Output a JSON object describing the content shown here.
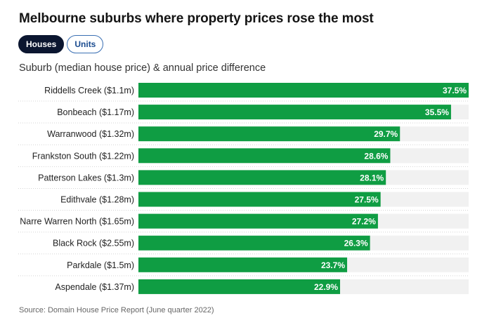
{
  "title": "Melbourne suburbs where property prices rose the most",
  "tabs": [
    {
      "label": "Houses",
      "active": true
    },
    {
      "label": "Units",
      "active": false
    }
  ],
  "subtitle": "Suburb (median house price) & annual price difference",
  "source": "Source: Domain House Price Report (June quarter 2022)",
  "colors": {
    "bar": "#0f9d43",
    "track": "#f1f1f1",
    "label": "#ffffff"
  },
  "chart_data": {
    "type": "bar",
    "orientation": "horizontal",
    "categories": [
      "Riddells Creek ($1.1m)",
      "Bonbeach ($1.17m)",
      "Warranwood ($1.32m)",
      "Frankston South ($1.22m)",
      "Patterson Lakes ($1.3m)",
      "Edithvale ($1.28m)",
      "Narre Warren North ($1.65m)",
      "Black Rock ($2.55m)",
      "Parkdale ($1.5m)",
      "Aspendale ($1.37m)"
    ],
    "values": [
      37.5,
      35.5,
      29.7,
      28.6,
      28.1,
      27.5,
      27.2,
      26.3,
      23.7,
      22.9
    ],
    "value_labels": [
      "37.5%",
      "35.5%",
      "29.7%",
      "28.6%",
      "28.1%",
      "27.5%",
      "27.2%",
      "26.3%",
      "23.7%",
      "22.9%"
    ],
    "xlim": [
      0,
      37.5
    ],
    "grid": false
  }
}
